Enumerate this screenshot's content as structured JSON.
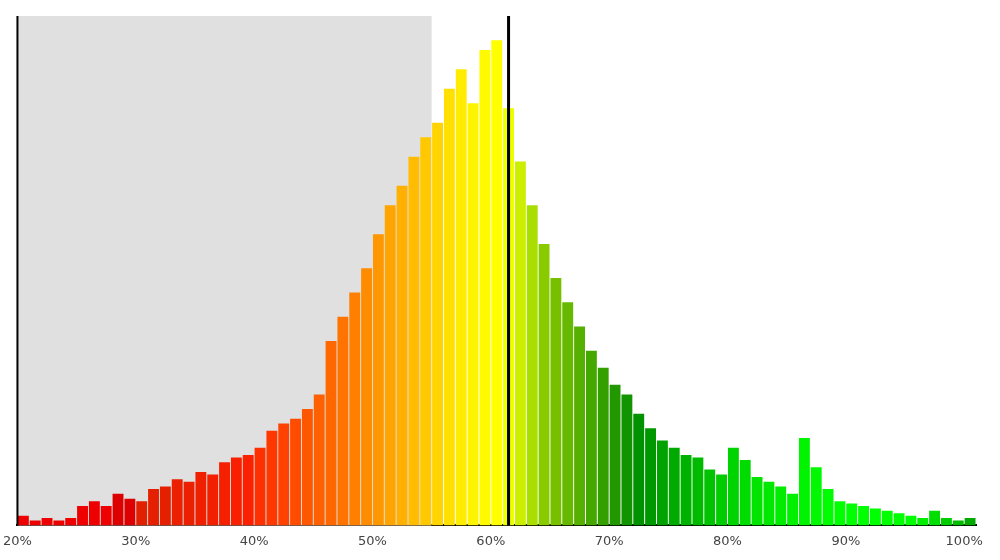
{
  "chart_data": {
    "type": "histogram",
    "bins": [
      20,
      21,
      22,
      23,
      24,
      25,
      26,
      27,
      28,
      29,
      30,
      31,
      32,
      33,
      34,
      35,
      36,
      37,
      38,
      39,
      40,
      41,
      42,
      43,
      44,
      45,
      46,
      47,
      48,
      49,
      50,
      51,
      52,
      53,
      54,
      55,
      56,
      57,
      58,
      59,
      60,
      61,
      62,
      63,
      64,
      65,
      66,
      67,
      68,
      69,
      70,
      71,
      72,
      73,
      74,
      75,
      76,
      77,
      78,
      79,
      80,
      81,
      82,
      83,
      84,
      85,
      86,
      87,
      88,
      89,
      90,
      91,
      92,
      93,
      94,
      95,
      96,
      97,
      98,
      99,
      100,
      101
    ],
    "counts": [
      2.0,
      1.0,
      1.5,
      1.0,
      1.5,
      4.0,
      5.0,
      4.0,
      6.5,
      5.5,
      5.0,
      7.5,
      8.0,
      9.5,
      9.0,
      11.0,
      10.5,
      13.0,
      14.0,
      14.5,
      16.0,
      19.5,
      21.0,
      22.0,
      24.0,
      27.0,
      38.0,
      43.0,
      48.0,
      53.0,
      60.0,
      66.0,
      70.0,
      76.0,
      80.0,
      83.0,
      90.0,
      94.0,
      87.0,
      98.0,
      100.0,
      86.0,
      75.0,
      66.0,
      58.0,
      51.0,
      46.0,
      41.0,
      36.0,
      32.5,
      29.0,
      27.0,
      23.0,
      20.0,
      17.5,
      16.0,
      14.5,
      14.0,
      11.5,
      10.5,
      16.0,
      13.5,
      10.0,
      9.0,
      8.0,
      6.5,
      18.0,
      12.0,
      7.5,
      5.0,
      4.5,
      4.0,
      3.5,
      3.0,
      2.5,
      2.0,
      1.5,
      3.0,
      1.5,
      1.0,
      1.5
    ],
    "colors": [
      "#ee0000",
      "#ee0000",
      "#ee0000",
      "#ee0000",
      "#ee0000",
      "#ee0000",
      "#ee0000",
      "#ee0000",
      "#dd0000",
      "#dd0000",
      "#e02000",
      "#e52000",
      "#e52000",
      "#ea2000",
      "#ea2000",
      "#ef2000",
      "#f22000",
      "#f52000",
      "#f82000",
      "#fb2000",
      "#ff3000",
      "#ff3800",
      "#ff4200",
      "#ff4c00",
      "#ff5600",
      "#ff6000",
      "#ff6800",
      "#ff7400",
      "#ff8000",
      "#ff8c00",
      "#ff9800",
      "#ffa400",
      "#ffb000",
      "#ffbc00",
      "#ffc800",
      "#ffd400",
      "#ffe000",
      "#ffec00",
      "#fff400",
      "#fffa00",
      "#ffff00",
      "#eeff00",
      "#ccee00",
      "#aadd00",
      "#88cc00",
      "#77c000",
      "#66b800",
      "#55b000",
      "#44a800",
      "#33a000",
      "#229800",
      "#119400",
      "#009200",
      "#009800",
      "#00a200",
      "#00aa00",
      "#00b200",
      "#00ba00",
      "#00c200",
      "#00cc00",
      "#00d400",
      "#00dc00",
      "#00e400",
      "#00e800",
      "#00ec00",
      "#00f000",
      "#00f400",
      "#00f800",
      "#00fc00",
      "#00ff00",
      "#00ff00",
      "#00ff00",
      "#00ff00",
      "#00ff00",
      "#00ff00",
      "#00ff00",
      "#00ee00",
      "#00dd00",
      "#00cc00",
      "#00bb00",
      "#00aa00"
    ],
    "xlim": [
      20,
      101
    ],
    "xticks": [
      {
        "value": 20,
        "label": "20%"
      },
      {
        "value": 30,
        "label": "30%"
      },
      {
        "value": 40,
        "label": "40%"
      },
      {
        "value": 50,
        "label": "50%"
      },
      {
        "value": 60,
        "label": "60%"
      },
      {
        "value": 70,
        "label": "70%"
      },
      {
        "value": 80,
        "label": "80%"
      },
      {
        "value": 90,
        "label": "90%"
      },
      {
        "value": 100,
        "label": "100%"
      }
    ],
    "ylim": [
      0,
      105
    ],
    "tick_labels": "x",
    "grid": false,
    "shaded_region": {
      "from": 20,
      "to": 55.0,
      "color": "#e0e0e0"
    },
    "vline": {
      "x": 61.5,
      "color": "#000000"
    }
  }
}
